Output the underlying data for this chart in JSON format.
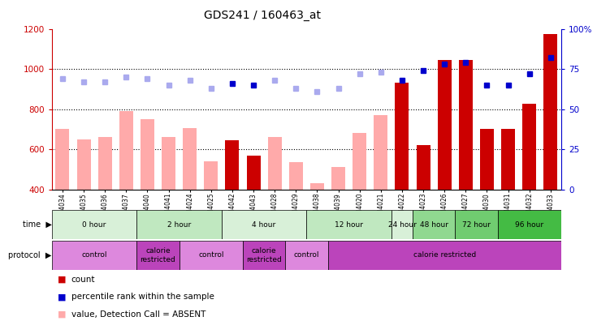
{
  "title": "GDS241 / 160463_at",
  "samples": [
    "GSM4034",
    "GSM4035",
    "GSM4036",
    "GSM4037",
    "GSM4040",
    "GSM4041",
    "GSM4024",
    "GSM4025",
    "GSM4042",
    "GSM4043",
    "GSM4028",
    "GSM4029",
    "GSM4038",
    "GSM4039",
    "GSM4020",
    "GSM4021",
    "GSM4022",
    "GSM4023",
    "GSM4026",
    "GSM4027",
    "GSM4030",
    "GSM4031",
    "GSM4032",
    "GSM4033"
  ],
  "bar_values": [
    700,
    650,
    660,
    790,
    750,
    660,
    705,
    540,
    645,
    570,
    660,
    535,
    430,
    510,
    680,
    770,
    930,
    620,
    1045,
    1045,
    700,
    700,
    825,
    1175
  ],
  "bar_absent": [
    true,
    true,
    true,
    true,
    true,
    true,
    true,
    true,
    false,
    false,
    true,
    true,
    true,
    true,
    true,
    true,
    false,
    false,
    false,
    false,
    false,
    false,
    false,
    false
  ],
  "rank_values": [
    69,
    67,
    67,
    70,
    69,
    65,
    68,
    63,
    66,
    65,
    68,
    63,
    61,
    63,
    72,
    73,
    68,
    74,
    78,
    79,
    65,
    65,
    72,
    82
  ],
  "rank_absent": [
    true,
    true,
    true,
    true,
    true,
    true,
    true,
    true,
    false,
    false,
    true,
    true,
    true,
    true,
    true,
    true,
    false,
    false,
    false,
    false,
    false,
    false,
    false,
    false
  ],
  "ylim_left": [
    400,
    1200
  ],
  "ylim_right": [
    0,
    100
  ],
  "yticks_left": [
    400,
    600,
    800,
    1000,
    1200
  ],
  "yticks_right": [
    0,
    25,
    50,
    75,
    100
  ],
  "time_groups": [
    {
      "label": "0 hour",
      "start": 0,
      "end": 4,
      "color": "#d8f0d8"
    },
    {
      "label": "2 hour",
      "start": 4,
      "end": 8,
      "color": "#c0e8c0"
    },
    {
      "label": "4 hour",
      "start": 8,
      "end": 12,
      "color": "#d8f0d8"
    },
    {
      "label": "12 hour",
      "start": 12,
      "end": 16,
      "color": "#c0e8c0"
    },
    {
      "label": "24 hour",
      "start": 16,
      "end": 17,
      "color": "#d8f0d8"
    },
    {
      "label": "48 hour",
      "start": 17,
      "end": 19,
      "color": "#90d890"
    },
    {
      "label": "72 hour",
      "start": 19,
      "end": 21,
      "color": "#70cc70"
    },
    {
      "label": "96 hour",
      "start": 21,
      "end": 24,
      "color": "#44bb44"
    }
  ],
  "protocol_groups": [
    {
      "label": "control",
      "start": 0,
      "end": 4,
      "color": "#dd88dd"
    },
    {
      "label": "calorie\nrestricted",
      "start": 4,
      "end": 6,
      "color": "#bb44bb"
    },
    {
      "label": "control",
      "start": 6,
      "end": 9,
      "color": "#dd88dd"
    },
    {
      "label": "calorie\nrestricted",
      "start": 9,
      "end": 11,
      "color": "#bb44bb"
    },
    {
      "label": "control",
      "start": 11,
      "end": 13,
      "color": "#dd88dd"
    },
    {
      "label": "calorie restricted",
      "start": 13,
      "end": 24,
      "color": "#bb44bb"
    }
  ],
  "bar_color_absent": "#ffaaaa",
  "bar_color_present": "#cc0000",
  "rank_color_absent": "#aaaaee",
  "rank_color_present": "#0000cc",
  "axis_label_color_left": "#cc0000",
  "axis_label_color_right": "#0000cc",
  "grid_yticks": [
    600,
    800,
    1000
  ]
}
